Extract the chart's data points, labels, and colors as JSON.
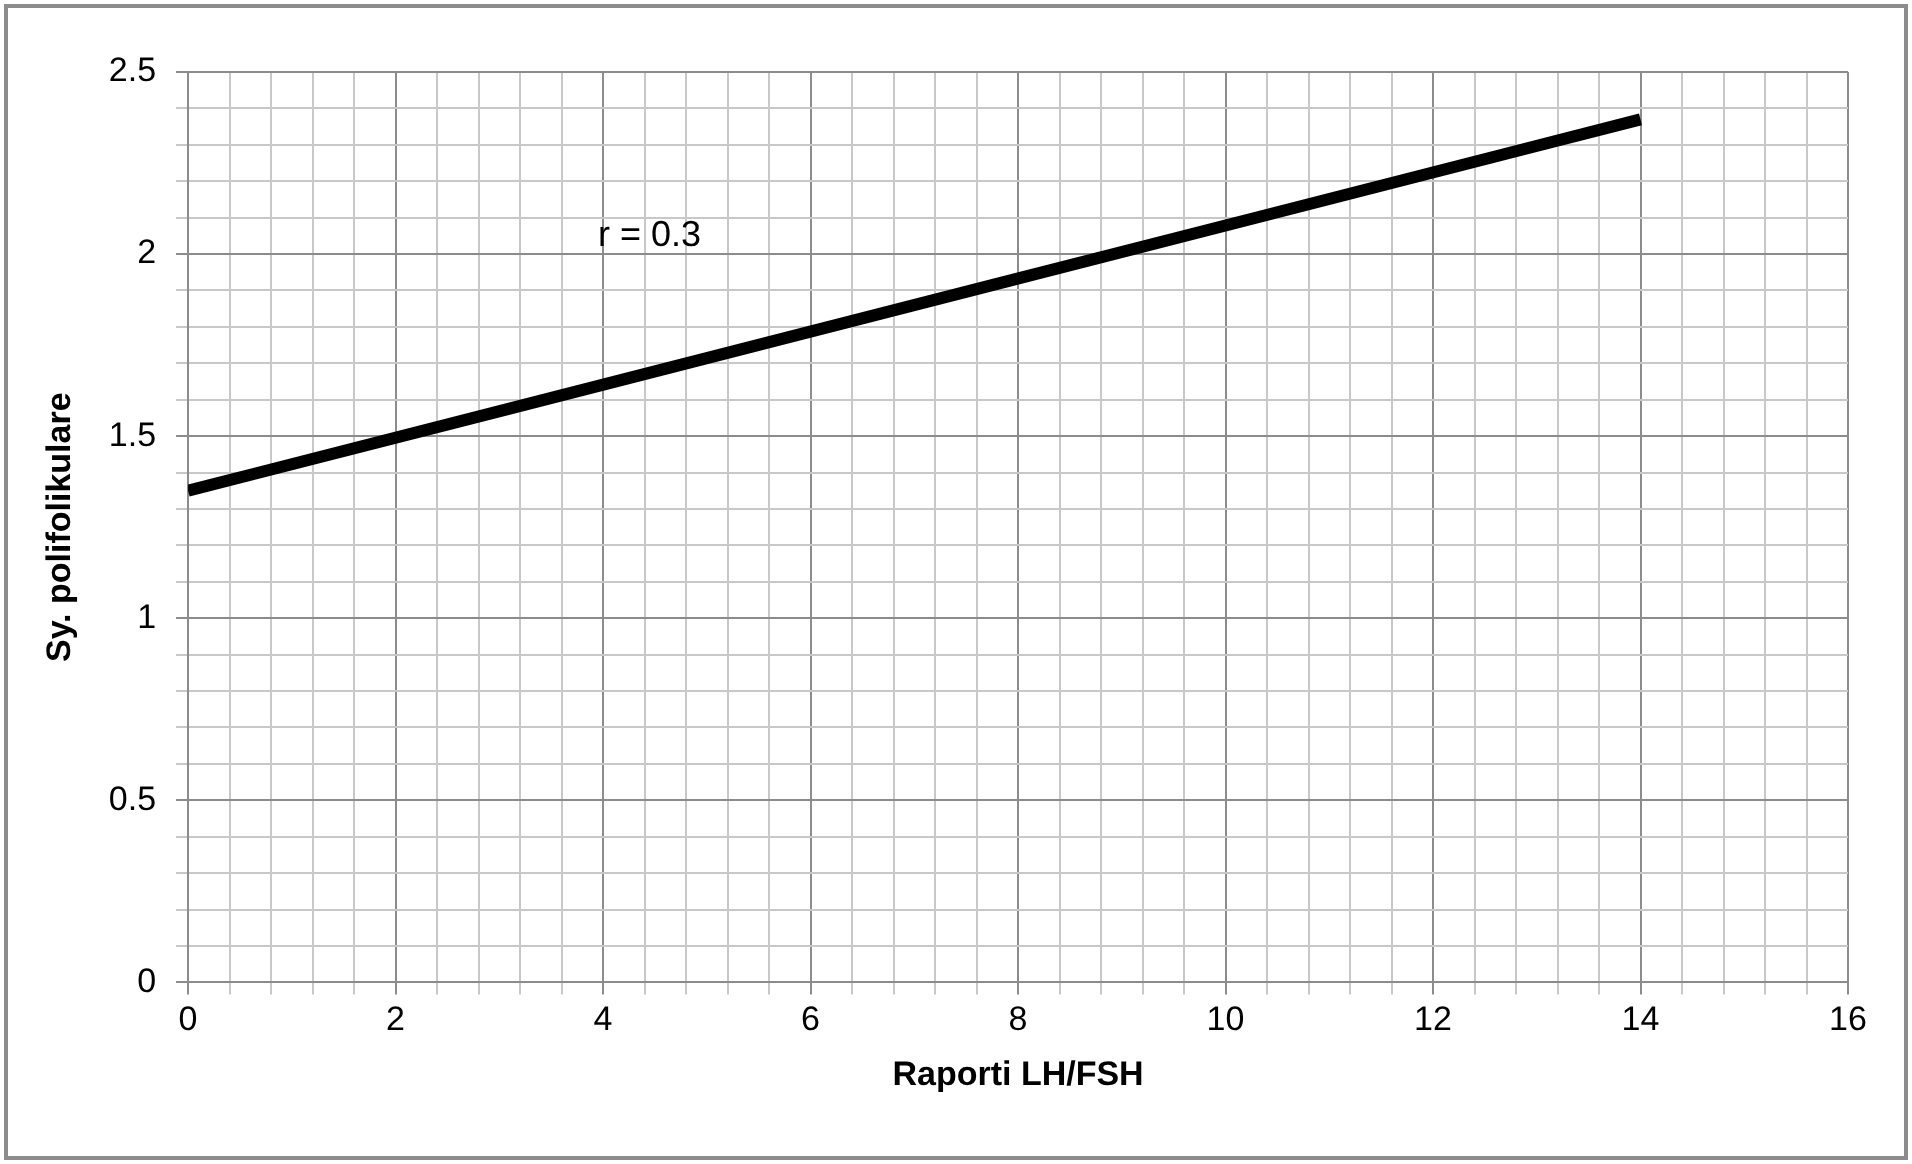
{
  "chart_data": {
    "type": "line",
    "xlabel": "Raporti LH/FSH",
    "ylabel": "Sy. polifolikulare",
    "annotations": [
      "r = 0.3"
    ],
    "x": [
      0,
      14
    ],
    "series": [
      {
        "color": "#000000",
        "values": [
          1.35,
          2.37
        ]
      }
    ],
    "marker": "none",
    "line_style": "solid",
    "grid": true,
    "legend": false,
    "xlim": [
      0,
      16
    ],
    "ylim": [
      0,
      2.5
    ],
    "xticks": [
      0,
      {
        "value": 0.4,
        "label": null
      },
      {
        "value": 0.8,
        "label": null
      },
      {
        "value": 1.2,
        "label": null
      },
      {
        "value": 1.6,
        "label": null
      },
      2,
      {
        "value": 2.4,
        "label": null
      },
      {
        "value": 2.8,
        "label": null
      },
      {
        "value": 3.2,
        "label": null
      },
      {
        "value": 3.6,
        "label": null
      },
      4,
      {
        "value": 4.4,
        "label": null
      },
      {
        "value": 4.8,
        "label": null
      },
      {
        "value": 5.2,
        "label": null
      },
      {
        "value": 5.6,
        "label": null
      },
      6,
      {
        "value": 6.4,
        "label": null
      },
      {
        "value": 6.8,
        "label": null
      },
      {
        "value": 7.2,
        "label": null
      },
      {
        "value": 7.6,
        "label": null
      },
      8,
      {
        "value": 8.4,
        "label": null
      },
      {
        "value": 8.8,
        "label": null
      },
      {
        "value": 9.2,
        "label": null
      },
      {
        "value": 9.6,
        "label": null
      },
      10,
      {
        "value": 10.4,
        "label": null
      },
      {
        "value": 10.8,
        "label": null
      },
      {
        "value": 11.2,
        "label": null
      },
      {
        "value": 11.6,
        "label": null
      },
      12,
      {
        "value": 12.4,
        "label": null
      },
      {
        "value": 12.8,
        "label": null
      },
      {
        "value": 13.2,
        "label": null
      },
      {
        "value": 13.6,
        "label": null
      },
      14,
      {
        "value": 14.4,
        "label": null
      },
      {
        "value": 14.8,
        "label": null
      },
      {
        "value": 15.2,
        "label": null
      },
      {
        "value": 15.6,
        "label": null
      },
      16
    ],
    "yticks": [
      0,
      {
        "value": 0.1,
        "label": null
      },
      {
        "value": 0.2,
        "label": null
      },
      {
        "value": 0.3,
        "label": null
      },
      {
        "value": 0.4,
        "label": null
      },
      0.5,
      {
        "value": 0.6,
        "label": null
      },
      {
        "value": 0.7,
        "label": null
      },
      {
        "value": 0.8,
        "label": null
      },
      {
        "value": 0.9,
        "label": null
      },
      1,
      {
        "value": 1.1,
        "label": null
      },
      {
        "value": 1.2,
        "label": null
      },
      {
        "value": 1.3,
        "label": null
      },
      {
        "value": 1.4,
        "label": null
      },
      1.5,
      {
        "value": 1.6,
        "label": null
      },
      {
        "value": 1.7,
        "label": null
      },
      {
        "value": 1.8,
        "label": null
      },
      {
        "value": 1.9,
        "label": null
      },
      2,
      {
        "value": 2.1,
        "label": null
      },
      {
        "value": 2.2,
        "label": null
      },
      {
        "value": 2.3,
        "label": null
      },
      {
        "value": 2.4,
        "label": null
      },
      2.5
    ]
  }
}
